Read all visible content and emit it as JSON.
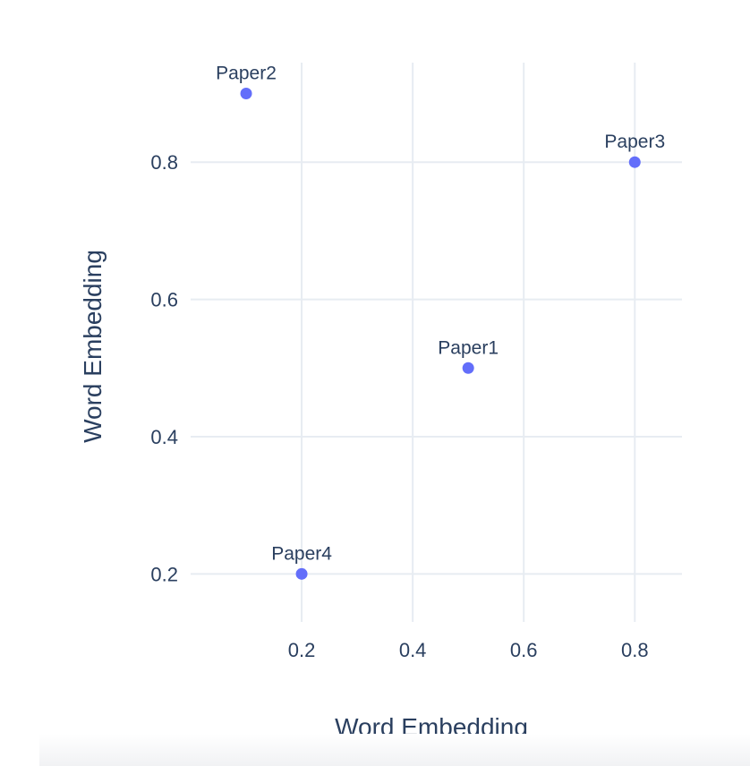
{
  "chart_data": {
    "type": "scatter",
    "title": "",
    "xlabel": "Word Embedding",
    "ylabel": "Word Embedding",
    "xlim": [
      0.0,
      0.885
    ],
    "ylim": [
      0.13,
      0.945
    ],
    "x_ticks": [
      0.2,
      0.4,
      0.6,
      0.8
    ],
    "y_ticks": [
      0.2,
      0.4,
      0.6,
      0.8
    ],
    "x_tick_labels": [
      "0.2",
      "0.4",
      "0.6",
      "0.8"
    ],
    "y_tick_labels": [
      "0.2",
      "0.4",
      "0.6",
      "0.8"
    ],
    "grid": true,
    "marker_color": "#636efa",
    "points": [
      {
        "label": "Paper1",
        "x": 0.5,
        "y": 0.5
      },
      {
        "label": "Paper2",
        "x": 0.1,
        "y": 0.9
      },
      {
        "label": "Paper3",
        "x": 0.8,
        "y": 0.8
      },
      {
        "label": "Paper4",
        "x": 0.2,
        "y": 0.2
      }
    ]
  }
}
